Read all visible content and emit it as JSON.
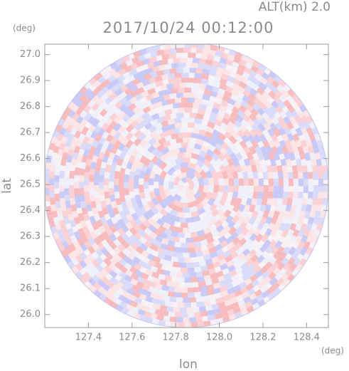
{
  "chart_data": {
    "type": "radar-ppi",
    "title": "2017/10/24 00:12:00",
    "altitude_label": "ALT(km) 2.0",
    "x_label": "lon",
    "y_label": "lat",
    "x_unit": "(deg)",
    "y_unit": "(deg)",
    "xlim": [
      127.2,
      128.5
    ],
    "xticks": [
      127.4,
      127.6,
      127.8,
      {
        "value": 128.0,
        "label": "128.0"
      },
      128.2,
      128.4
    ],
    "ylim": [
      25.95,
      27.04
    ],
    "yticks": [
      {
        "value": 26.0,
        "label": "26.0"
      },
      26.1,
      26.2,
      26.3,
      26.4,
      26.5,
      26.6,
      26.7,
      26.8,
      26.9,
      {
        "value": 27.0,
        "label": "27.0"
      }
    ]
  }
}
